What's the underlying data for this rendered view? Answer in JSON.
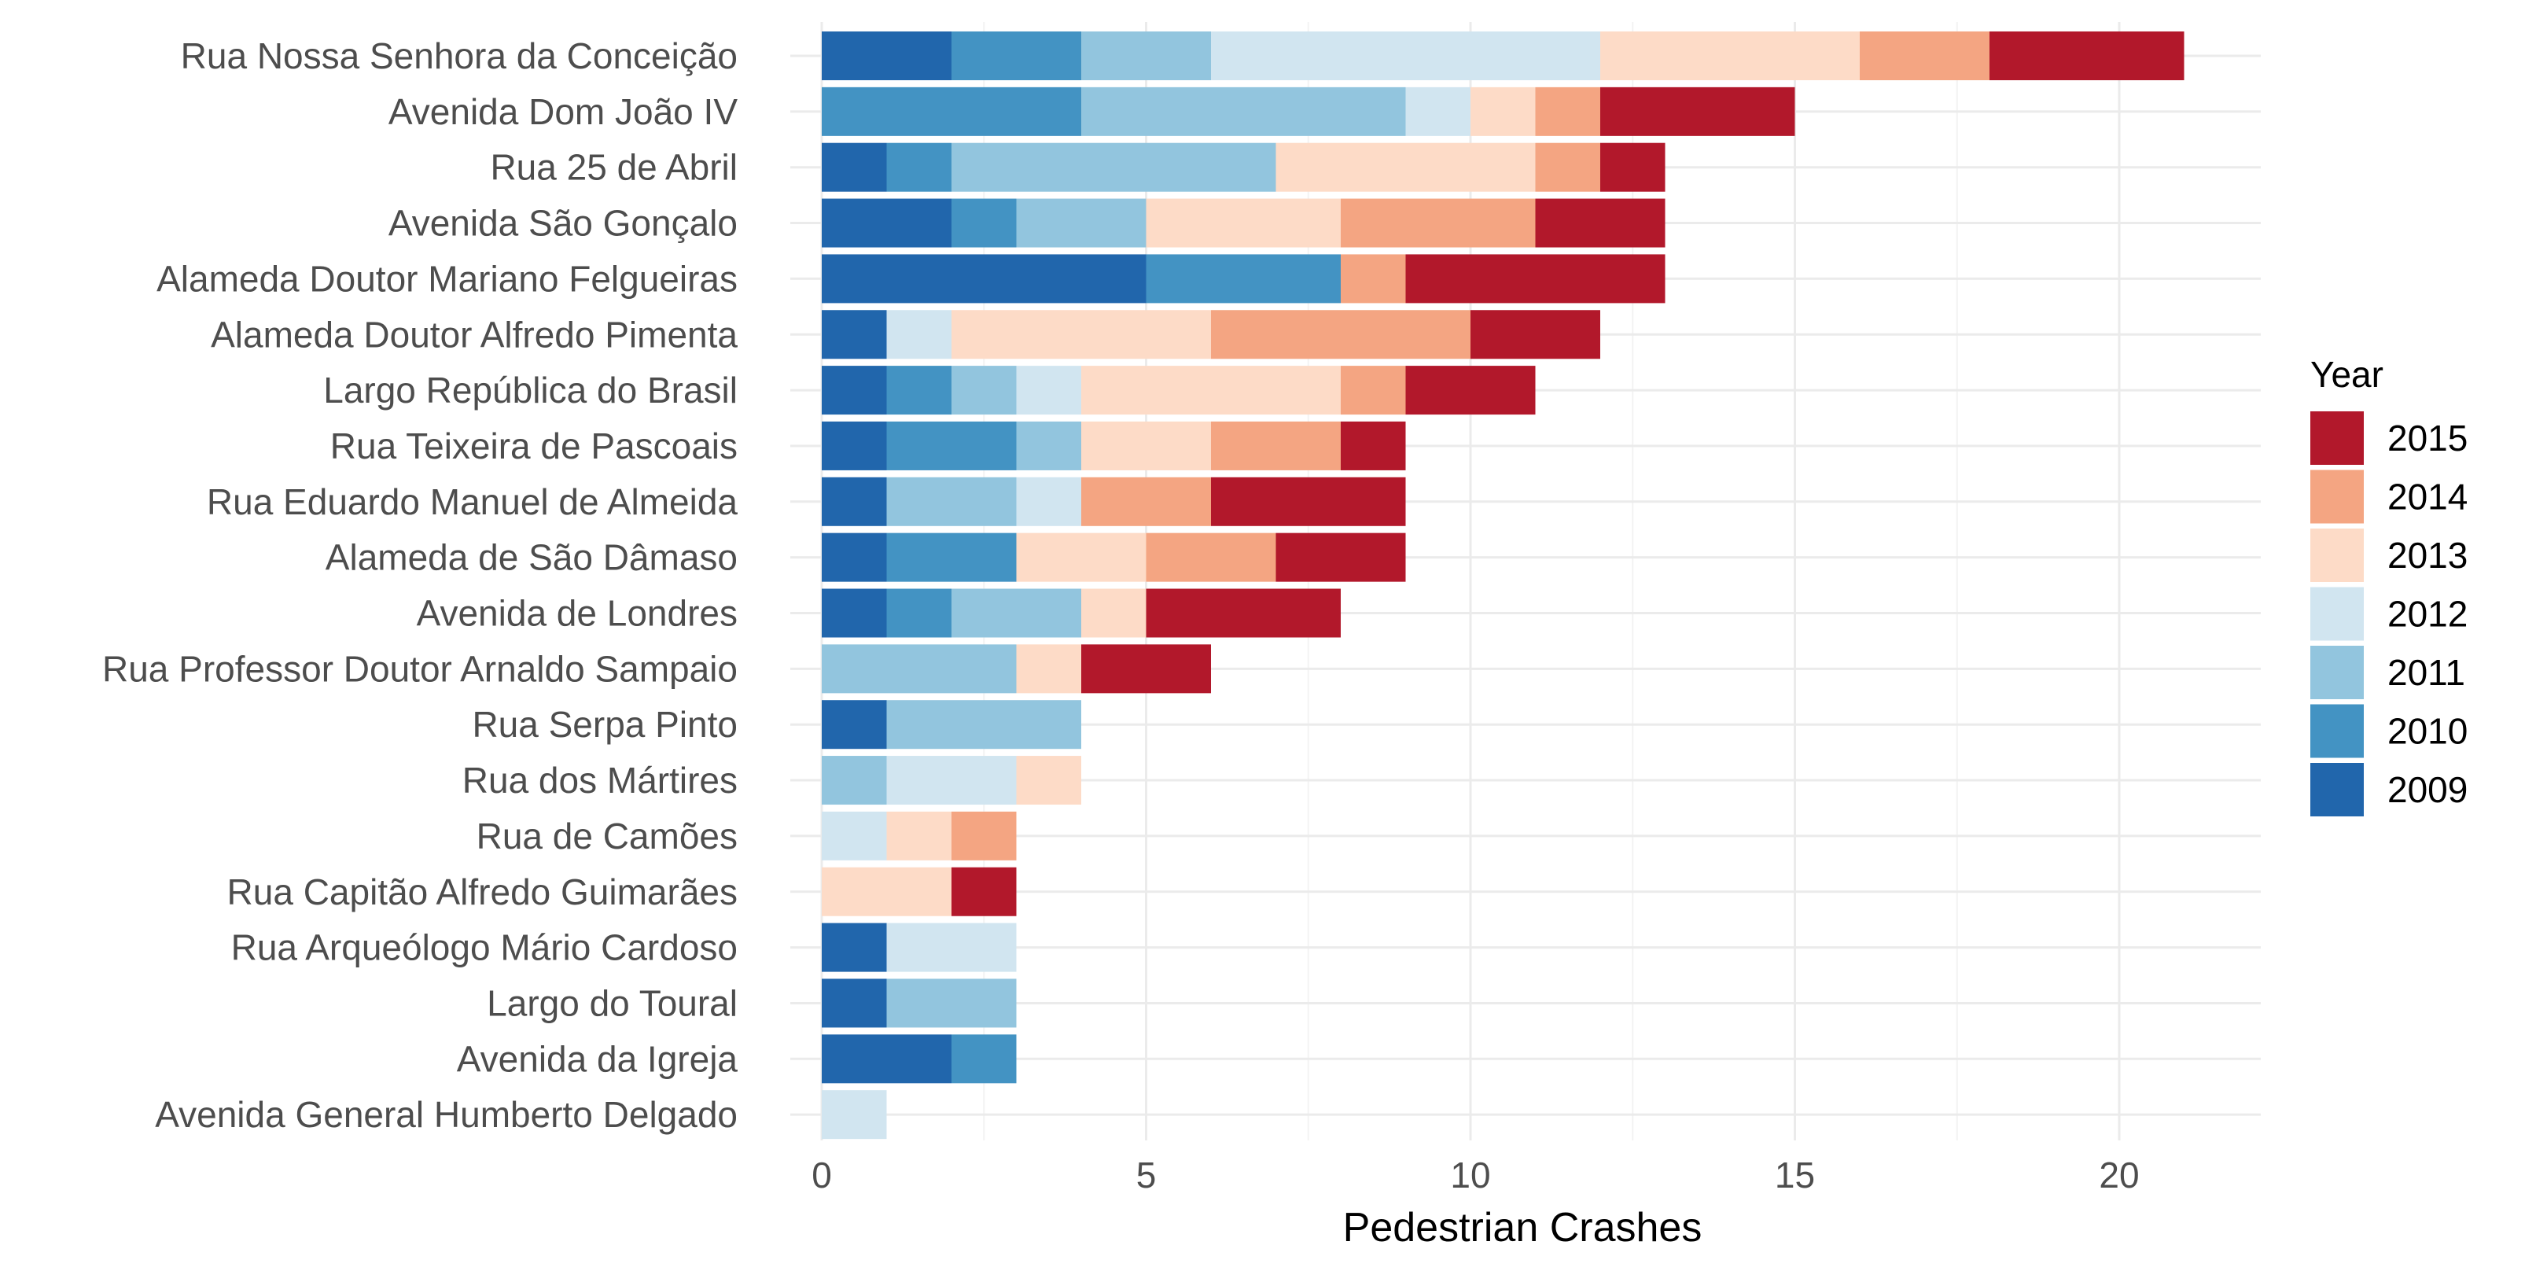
{
  "chart_data": {
    "type": "bar",
    "orientation": "horizontal",
    "stacked": true,
    "title": "",
    "xlabel": "Pedestrian Crashes",
    "ylabel": "",
    "xlim": [
      0,
      22
    ],
    "x_ticks": [
      0,
      5,
      10,
      15,
      20
    ],
    "grid": true,
    "legend": {
      "title": "Year",
      "position": "right",
      "order": [
        "2015",
        "2014",
        "2013",
        "2012",
        "2011",
        "2010",
        "2009"
      ]
    },
    "colors": {
      "2009": "#2166ac",
      "2010": "#4393c3",
      "2011": "#92c5de",
      "2012": "#d1e5f0",
      "2013": "#fddbc7",
      "2014": "#f4a582",
      "2015": "#b2182b"
    },
    "categories": [
      "Rua Nossa Senhora da Conceição",
      "Avenida Dom João IV",
      "Rua 25 de Abril",
      "Avenida São Gonçalo",
      "Alameda Doutor Mariano Felgueiras",
      "Alameda Doutor Alfredo Pimenta",
      "Largo República do Brasil",
      "Rua Teixeira de Pascoais",
      "Rua Eduardo Manuel de Almeida",
      "Alameda de São Dâmaso",
      "Avenida de Londres",
      "Rua Professor Doutor Arnaldo Sampaio",
      "Rua Serpa Pinto",
      "Rua dos Mártires",
      "Rua de Camões",
      "Rua Capitão Alfredo Guimarães",
      "Rua Arqueólogo Mário Cardoso",
      "Largo do Toural",
      "Avenida da Igreja",
      "Avenida General Humberto Delgado"
    ],
    "series": [
      {
        "name": "2009",
        "values": [
          2,
          0,
          1,
          2,
          5,
          1,
          1,
          1,
          1,
          1,
          1,
          0,
          1,
          0,
          0,
          0,
          1,
          1,
          2,
          0
        ]
      },
      {
        "name": "2010",
        "values": [
          2,
          4,
          1,
          1,
          3,
          0,
          1,
          2,
          0,
          2,
          1,
          0,
          0,
          0,
          0,
          0,
          0,
          0,
          1,
          0
        ]
      },
      {
        "name": "2011",
        "values": [
          2,
          5,
          5,
          2,
          0,
          0,
          1,
          1,
          2,
          0,
          2,
          3,
          3,
          1,
          0,
          0,
          0,
          2,
          0,
          0
        ]
      },
      {
        "name": "2012",
        "values": [
          6,
          1,
          0,
          0,
          0,
          1,
          1,
          0,
          1,
          0,
          0,
          0,
          0,
          2,
          1,
          0,
          2,
          0,
          0,
          1
        ]
      },
      {
        "name": "2013",
        "values": [
          4,
          1,
          4,
          3,
          0,
          4,
          4,
          2,
          0,
          2,
          1,
          1,
          0,
          1,
          1,
          2,
          0,
          0,
          0,
          0
        ]
      },
      {
        "name": "2014",
        "values": [
          2,
          1,
          1,
          3,
          1,
          4,
          1,
          2,
          2,
          2,
          0,
          0,
          0,
          0,
          1,
          0,
          0,
          0,
          0,
          0
        ]
      },
      {
        "name": "2015",
        "values": [
          3,
          3,
          1,
          2,
          4,
          2,
          2,
          1,
          3,
          2,
          3,
          2,
          0,
          0,
          0,
          1,
          0,
          0,
          0,
          0
        ]
      }
    ]
  }
}
